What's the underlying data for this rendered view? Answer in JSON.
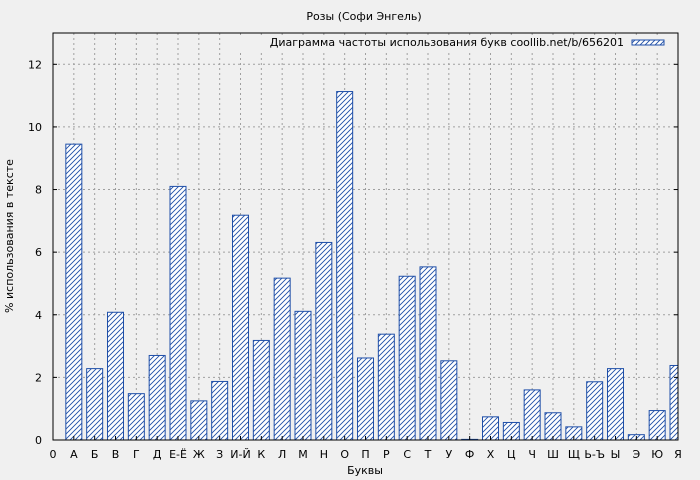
{
  "chart_data": {
    "type": "bar",
    "title": "Розы (Софи Энгель)",
    "xlabel": "Буквы",
    "ylabel": "% использования в тексте",
    "legend": "Диаграмма частоты использования букв coollib.net/b/656201",
    "legend_position": "top-right",
    "grid": true,
    "ylim": [
      0,
      13
    ],
    "yticks": [
      0,
      2,
      4,
      6,
      8,
      10,
      12
    ],
    "x_origin_label": "0",
    "categories": [
      "А",
      "Б",
      "В",
      "Г",
      "Д",
      "Е-Ё",
      "Ж",
      "З",
      "И-Й",
      "К",
      "Л",
      "М",
      "Н",
      "О",
      "П",
      "Р",
      "С",
      "Т",
      "У",
      "Ф",
      "Х",
      "Ц",
      "Ч",
      "Ш",
      "Щ",
      "Ь-Ъ",
      "Ы",
      "Э",
      "Ю",
      "Я"
    ],
    "values": [
      9.45,
      2.28,
      4.08,
      1.48,
      2.7,
      8.1,
      1.25,
      1.87,
      7.18,
      3.18,
      5.17,
      4.11,
      6.31,
      11.13,
      2.62,
      3.38,
      5.23,
      5.53,
      2.53,
      0.02,
      0.74,
      0.56,
      1.6,
      0.87,
      0.42,
      1.86,
      2.28,
      0.17,
      0.94,
      2.38
    ],
    "bar_color": "#1f4fa8"
  }
}
